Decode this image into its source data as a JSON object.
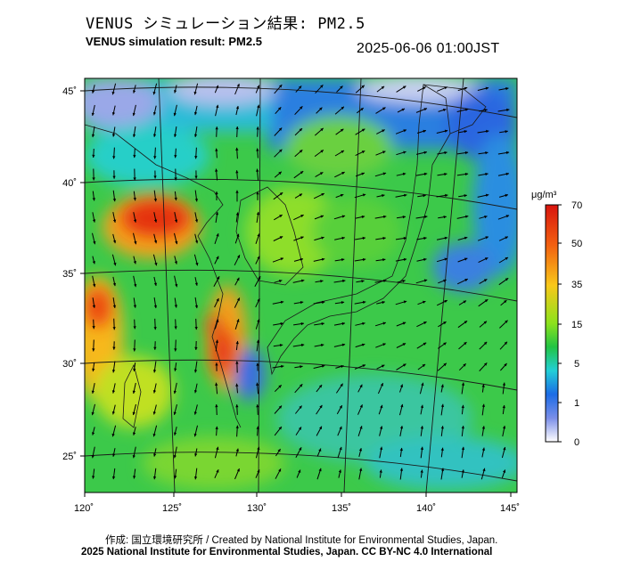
{
  "header": {
    "title_jp": "VENUS シミュレーション結果: PM2.5",
    "title_en": "VENUS simulation result: PM2.5",
    "timestamp": "2025-06-06 01:00JST"
  },
  "map": {
    "lon_ticks": [
      "120˚",
      "125˚",
      "130˚",
      "135˚",
      "140˚",
      "145˚"
    ],
    "lat_ticks": [
      "45˚",
      "40˚",
      "35˚",
      "30˚",
      "25˚"
    ]
  },
  "colorbar": {
    "unit": "μg/m³",
    "ticks": [
      "70",
      "50",
      "35",
      "15",
      "5",
      "1",
      "0"
    ],
    "colors": [
      "#e01a12",
      "#f06a10",
      "#f8c21a",
      "#9ce21c",
      "#28c83c",
      "#2ad2d0",
      "#1e6ee6",
      "#6a86e6",
      "#ffffff"
    ]
  },
  "footer": {
    "credit": "作成: 国立環境研究所 / Created by National Institute for Environmental Studies, Japan.",
    "copyright": "2025 National Institute for Environmental Studies, Japan. CC BY-NC 4.0 International"
  }
}
